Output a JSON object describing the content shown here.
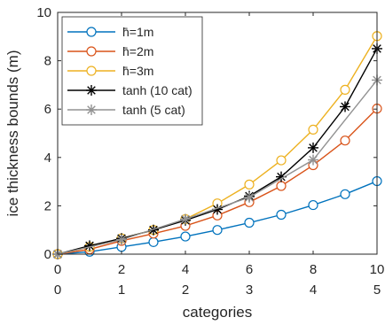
{
  "chart_data": {
    "type": "line",
    "xlabel": "categories",
    "ylabel": "ice thickness bounds (m)",
    "xlim": [
      0,
      10
    ],
    "ylim": [
      0,
      10
    ],
    "xticks": [
      0,
      2,
      4,
      6,
      8,
      10
    ],
    "xticks_secondary": [
      0,
      1,
      2,
      3,
      4,
      5
    ],
    "yticks": [
      0,
      2,
      4,
      6,
      8,
      10
    ],
    "grid": false,
    "legend_position": "top-left",
    "series": [
      {
        "name": "h̄=1m",
        "color": "#0072bd",
        "marker": "circle",
        "x": [
          0,
          1,
          2,
          3,
          4,
          5,
          6,
          7,
          8,
          9,
          10
        ],
        "y": [
          0,
          0.1,
          0.3,
          0.5,
          0.73,
          1.0,
          1.3,
          1.63,
          2.03,
          2.48,
          3.02
        ]
      },
      {
        "name": "h̄=2m",
        "color": "#d95319",
        "marker": "circle",
        "x": [
          0,
          1,
          2,
          3,
          4,
          5,
          6,
          7,
          8,
          9,
          10
        ],
        "y": [
          0,
          0.2,
          0.55,
          0.85,
          1.17,
          1.6,
          2.15,
          2.82,
          3.68,
          4.7,
          6.02
        ]
      },
      {
        "name": "h̄=3m",
        "color": "#edb120",
        "marker": "circle",
        "x": [
          0,
          1,
          2,
          3,
          4,
          5,
          6,
          7,
          8,
          9,
          10
        ],
        "y": [
          0,
          0.3,
          0.65,
          1.0,
          1.45,
          2.1,
          2.88,
          3.88,
          5.15,
          6.8,
          9.02
        ]
      },
      {
        "name": "tanh (10 cat)",
        "color": "#000000",
        "marker": "star",
        "x": [
          0,
          1,
          2,
          3,
          4,
          5,
          6,
          7,
          8,
          9,
          10
        ],
        "y": [
          0,
          0.35,
          0.65,
          1.0,
          1.4,
          1.85,
          2.4,
          3.2,
          4.4,
          6.1,
          8.5
        ]
      },
      {
        "name": "tanh (5 cat)",
        "color": "#929292",
        "marker": "star",
        "x": [
          0,
          2,
          4,
          6,
          8,
          10
        ],
        "y": [
          0,
          0.6,
          1.45,
          2.35,
          3.9,
          7.2
        ]
      }
    ]
  }
}
